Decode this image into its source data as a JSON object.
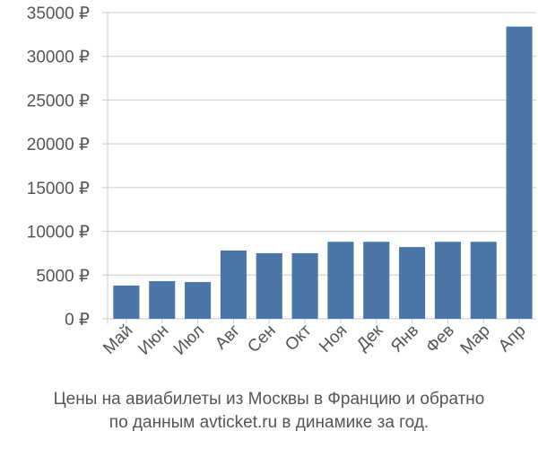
{
  "chart_data": {
    "type": "bar",
    "categories": [
      "Май",
      "Июн",
      "Июл",
      "Авг",
      "Сен",
      "Окт",
      "Ноя",
      "Дек",
      "Янв",
      "Фев",
      "Мар",
      "Апр"
    ],
    "values": [
      3800,
      4300,
      4200,
      7800,
      7500,
      7500,
      8800,
      8800,
      8200,
      8800,
      8800,
      33400
    ],
    "ylim": [
      0,
      35000
    ],
    "yticks": [
      0,
      5000,
      10000,
      15000,
      20000,
      25000,
      30000,
      35000
    ],
    "ytick_labels": [
      "0 ₽",
      "5000 ₽",
      "10000 ₽",
      "15000 ₽",
      "20000 ₽",
      "25000 ₽",
      "30000 ₽",
      "35000 ₽"
    ],
    "grid": true,
    "bar_color": "#4a76a8",
    "title": "",
    "xlabel": "",
    "ylabel": ""
  },
  "caption": {
    "line1": "Цены на авиабилеты из Москвы в Францию и обратно",
    "line2": "по данным avticket.ru в динамике за год."
  }
}
